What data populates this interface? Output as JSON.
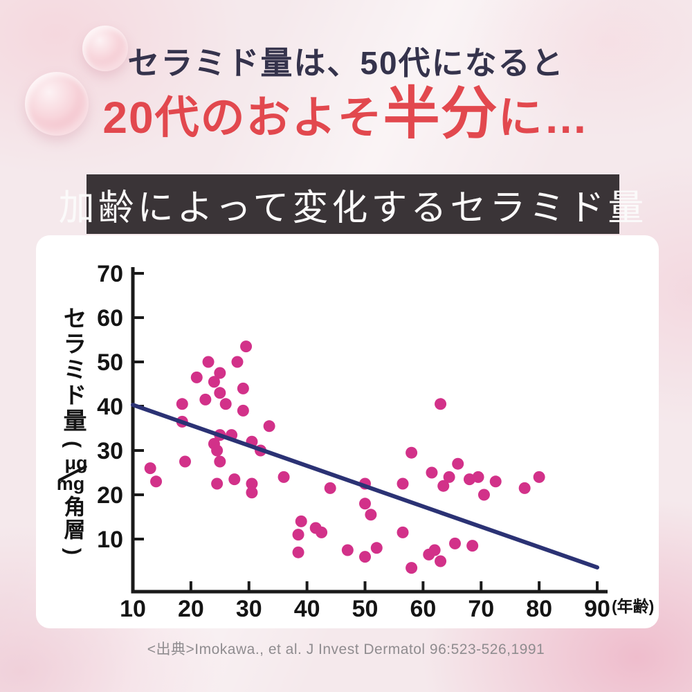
{
  "headline": {
    "line1": "セラミド量は、50代になると",
    "line2_prefix": "20代のおよそ",
    "line2_emph": "半分",
    "line2_suffix": "に…"
  },
  "banner": {
    "title": "加齢によって変化するセラミド量"
  },
  "y_axis_label": {
    "main": "セラミド量",
    "paren_open": "(",
    "unit_num": "μg",
    "unit_den": "mg",
    "unit_suffix": "角層",
    "paren_close": ")"
  },
  "citation": "<出典>Imokawa., et al. J Invest Dermatol 96:523-526,1991",
  "chart_data": {
    "type": "scatter",
    "title": "加齢によって変化するセラミド量",
    "xlabel": "(年齢)",
    "ylabel": "セラミド量(μg/mg角層)",
    "x_ticks": [
      10,
      20,
      30,
      40,
      50,
      60,
      70,
      80,
      90
    ],
    "y_ticks": [
      10,
      20,
      30,
      40,
      50,
      60,
      70
    ],
    "xlim": [
      10,
      92
    ],
    "ylim": [
      0,
      72
    ],
    "grid": false,
    "point_color": "#d23189",
    "axis_color": "#1a1a1a",
    "trend_line": {
      "x1": 10,
      "y1": 40.3,
      "x2": 90,
      "y2": 3.6,
      "color": "#2b3274"
    },
    "points": [
      [
        13,
        26
      ],
      [
        14,
        23
      ],
      [
        18.5,
        40.5
      ],
      [
        18.5,
        36.5
      ],
      [
        19,
        27.5
      ],
      [
        21,
        46.5
      ],
      [
        22.5,
        41.5
      ],
      [
        23,
        50
      ],
      [
        24,
        45.5
      ],
      [
        25,
        47.5
      ],
      [
        25,
        43
      ],
      [
        24,
        31.5
      ],
      [
        24.5,
        30
      ],
      [
        25,
        27.5
      ],
      [
        24.5,
        22.5
      ],
      [
        25,
        33.5
      ],
      [
        26,
        40.5
      ],
      [
        27,
        33.5
      ],
      [
        27.5,
        23.5
      ],
      [
        28,
        50
      ],
      [
        29.5,
        53.5
      ],
      [
        29,
        44
      ],
      [
        29,
        39
      ],
      [
        30.5,
        32
      ],
      [
        30.5,
        22.5
      ],
      [
        30.5,
        20.5
      ],
      [
        32,
        30
      ],
      [
        33.5,
        35.5
      ],
      [
        36,
        24
      ],
      [
        38.5,
        11
      ],
      [
        38.5,
        7
      ],
      [
        39,
        14
      ],
      [
        41.5,
        12.5
      ],
      [
        42.5,
        11.5
      ],
      [
        44,
        21.5
      ],
      [
        47,
        7.5
      ],
      [
        50,
        22.5
      ],
      [
        50,
        18
      ],
      [
        51,
        15.5
      ],
      [
        50,
        6
      ],
      [
        52,
        8
      ],
      [
        56.5,
        22.5
      ],
      [
        56.5,
        11.5
      ],
      [
        58,
        29.5
      ],
      [
        58,
        3.5
      ],
      [
        61,
        6.5
      ],
      [
        61.5,
        25
      ],
      [
        62,
        7.5
      ],
      [
        63,
        40.5
      ],
      [
        63,
        5
      ],
      [
        63.5,
        22
      ],
      [
        64.5,
        24
      ],
      [
        65.5,
        9
      ],
      [
        66,
        27
      ],
      [
        68,
        23.5
      ],
      [
        68.5,
        8.5
      ],
      [
        69.5,
        24
      ],
      [
        70.5,
        20
      ],
      [
        72.5,
        23
      ],
      [
        77.5,
        21.5
      ],
      [
        80,
        24
      ]
    ]
  }
}
